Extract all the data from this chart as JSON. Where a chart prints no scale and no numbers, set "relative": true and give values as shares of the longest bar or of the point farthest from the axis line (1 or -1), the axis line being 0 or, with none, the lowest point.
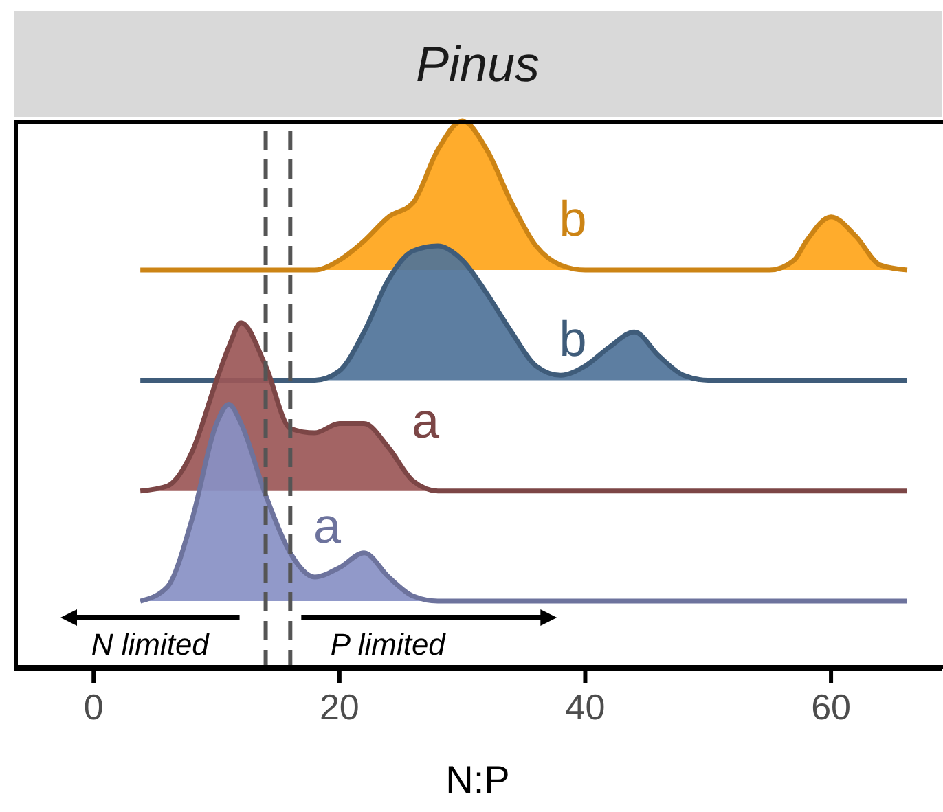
{
  "chart_data": {
    "type": "area",
    "title": "Pinus",
    "xlabel": "N:P",
    "relative": true,
    "x": [
      3.8,
      6,
      8,
      10,
      11,
      12,
      14,
      16,
      18,
      20,
      22,
      24,
      26,
      28,
      30,
      32,
      34,
      36,
      38,
      40,
      42,
      44,
      46,
      48,
      50,
      55,
      57,
      58,
      60,
      62,
      64,
      66.2
    ],
    "series": [
      {
        "name": "b",
        "color": "#ffa51a",
        "values": [
          0.728,
          0.728,
          0.728,
          0.728,
          0.728,
          0.728,
          0.728,
          0.728,
          0.728,
          0.746,
          0.781,
          0.825,
          0.851,
          0.947,
          1,
          0.947,
          0.851,
          0.772,
          0.737,
          0.728,
          0.728,
          0.728,
          0.728,
          0.728,
          0.728,
          0.728,
          0.746,
          0.781,
          0.825,
          0.79,
          0.737,
          0.728
        ]
      },
      {
        "name": "b",
        "color": "#4f7399",
        "values": [
          0.527,
          0.527,
          0.527,
          0.527,
          0.527,
          0.527,
          0.527,
          0.527,
          0.527,
          0.544,
          0.615,
          0.711,
          0.763,
          0.772,
          0.746,
          0.685,
          0.615,
          0.553,
          0.536,
          0.553,
          0.588,
          0.615,
          0.571,
          0.536,
          0.527,
          0.527,
          0.527,
          0.527,
          0.527,
          0.527,
          0.527,
          0.527
        ]
      },
      {
        "name": "a",
        "color": "#9b5757",
        "values": [
          0.325,
          0.334,
          0.396,
          0.527,
          0.588,
          0.632,
          0.553,
          0.439,
          0.431,
          0.448,
          0.448,
          0.404,
          0.343,
          0.325,
          0.325,
          0.325,
          0.325,
          0.325,
          0.325,
          0.325,
          0.325,
          0.325,
          0.325,
          0.325,
          0.325,
          0.325,
          0.325,
          0.325,
          0.325,
          0.325,
          0.325,
          0.325
        ]
      },
      {
        "name": "a",
        "color": "#8890c4",
        "values": [
          0.124,
          0.15,
          0.273,
          0.448,
          0.483,
          0.448,
          0.317,
          0.212,
          0.168,
          0.185,
          0.212,
          0.168,
          0.133,
          0.124,
          0.124,
          0.124,
          0.124,
          0.124,
          0.124,
          0.124,
          0.124,
          0.124,
          0.124,
          0.124,
          0.124,
          0.124,
          0.124,
          0.124,
          0.124,
          0.124,
          0.124,
          0.124
        ]
      }
    ],
    "xlim": [
      -6.5,
      69
    ],
    "xticks": [
      0,
      20,
      40,
      60
    ],
    "legend": false,
    "ref_lines": [
      {
        "axis": "x",
        "value": 14,
        "color": "#555555",
        "line_style": "dashed"
      },
      {
        "axis": "x",
        "value": 16,
        "color": "#555555",
        "line_style": "dashed"
      }
    ],
    "annotations": [
      "N limited",
      "P limited"
    ]
  }
}
